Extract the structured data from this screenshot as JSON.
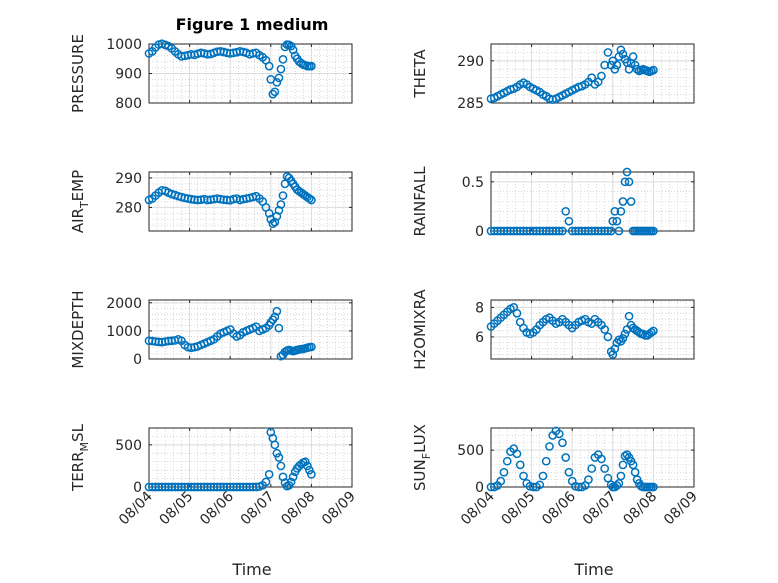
{
  "figure": {
    "title": "Figure 1 medium",
    "xlabel": "Time",
    "x_tick_labels": [
      "08/04",
      "08/05",
      "08/06",
      "08/07",
      "08/08",
      "08/09"
    ],
    "marker_color": "#0072BD",
    "marker": "open-circle"
  },
  "chart_data": [
    {
      "type": "scatter",
      "ylabel": "PRESSURE",
      "ylim": [
        800,
        1000
      ],
      "yticks": [
        800,
        900,
        1000
      ],
      "xlim": [
        "08/04",
        "08/09"
      ],
      "grid": true,
      "x": [
        0.0,
        0.08,
        0.16,
        0.24,
        0.32,
        0.4,
        0.48,
        0.56,
        0.64,
        0.72,
        0.8,
        0.88,
        0.96,
        1.04,
        1.12,
        1.2,
        1.28,
        1.36,
        1.44,
        1.52,
        1.6,
        1.68,
        1.76,
        1.84,
        1.92,
        2.0,
        2.08,
        2.16,
        2.24,
        2.32,
        2.4,
        2.48,
        2.56,
        2.64,
        2.72,
        2.8,
        2.88,
        2.96,
        3.0,
        3.05,
        3.1,
        3.15,
        3.2,
        3.25,
        3.3,
        3.35,
        3.4,
        3.45,
        3.5,
        3.55,
        3.6,
        3.65,
        3.7,
        3.75,
        3.8,
        3.85,
        3.9,
        3.95,
        4.0
      ],
      "y": [
        968,
        975,
        988,
        998,
        1001,
        997,
        993,
        985,
        975,
        965,
        958,
        960,
        962,
        965,
        963,
        967,
        970,
        968,
        965,
        966,
        970,
        974,
        975,
        973,
        970,
        968,
        970,
        972,
        975,
        973,
        970,
        965,
        968,
        970,
        962,
        955,
        945,
        925,
        880,
        830,
        838,
        870,
        885,
        915,
        948,
        990,
        998,
        997,
        993,
        980,
        960,
        950,
        940,
        935,
        930,
        928,
        925,
        925,
        925
      ]
    },
    {
      "type": "scatter",
      "ylabel": "THETA",
      "ylim": [
        285,
        292
      ],
      "yticks": [
        285,
        290
      ],
      "xlim": [
        "08/04",
        "08/09"
      ],
      "grid": true,
      "x": [
        0.0,
        0.08,
        0.16,
        0.24,
        0.32,
        0.4,
        0.48,
        0.56,
        0.64,
        0.72,
        0.8,
        0.88,
        0.96,
        1.04,
        1.12,
        1.2,
        1.28,
        1.36,
        1.44,
        1.52,
        1.6,
        1.68,
        1.76,
        1.84,
        1.92,
        2.0,
        2.08,
        2.16,
        2.24,
        2.32,
        2.4,
        2.48,
        2.56,
        2.64,
        2.72,
        2.8,
        2.88,
        2.96,
        3.0,
        3.05,
        3.1,
        3.15,
        3.2,
        3.25,
        3.3,
        3.35,
        3.4,
        3.45,
        3.5,
        3.55,
        3.6,
        3.65,
        3.7,
        3.75,
        3.8,
        3.85,
        3.9,
        3.95,
        4.0
      ],
      "y": [
        285.5,
        285.6,
        285.8,
        286.0,
        286.2,
        286.4,
        286.6,
        286.7,
        286.9,
        287.2,
        287.4,
        287.2,
        286.9,
        286.7,
        286.5,
        286.3,
        286.0,
        285.8,
        285.5,
        285.4,
        285.5,
        285.7,
        285.9,
        286.1,
        286.3,
        286.5,
        286.7,
        286.9,
        287.0,
        287.2,
        287.5,
        288.0,
        287.2,
        287.5,
        288.2,
        289.5,
        291.0,
        289.5,
        290.0,
        289.0,
        289.5,
        290.5,
        291.3,
        290.8,
        290.2,
        289.8,
        289.0,
        289.7,
        290.5,
        289.5,
        289.0,
        288.8,
        288.9,
        289.0,
        288.9,
        288.8,
        288.7,
        288.8,
        288.9
      ]
    },
    {
      "type": "scatter",
      "ylabel": "AIR_T_EMP",
      "ylim": [
        272,
        292
      ],
      "yticks": [
        280,
        290
      ],
      "xlim": [
        "08/04",
        "08/09"
      ],
      "grid": true,
      "x": [
        0.0,
        0.08,
        0.16,
        0.24,
        0.32,
        0.4,
        0.48,
        0.56,
        0.64,
        0.72,
        0.8,
        0.88,
        0.96,
        1.04,
        1.12,
        1.2,
        1.28,
        1.36,
        1.44,
        1.52,
        1.6,
        1.68,
        1.76,
        1.84,
        1.92,
        2.0,
        2.08,
        2.16,
        2.24,
        2.32,
        2.4,
        2.48,
        2.56,
        2.64,
        2.72,
        2.8,
        2.88,
        2.96,
        3.0,
        3.05,
        3.1,
        3.15,
        3.2,
        3.25,
        3.3,
        3.35,
        3.4,
        3.45,
        3.5,
        3.55,
        3.6,
        3.65,
        3.7,
        3.75,
        3.8,
        3.85,
        3.9,
        3.95,
        4.0
      ],
      "y": [
        282.5,
        283.0,
        284.0,
        285.0,
        285.8,
        285.6,
        285.0,
        284.5,
        284.2,
        283.8,
        283.5,
        283.2,
        283.0,
        282.8,
        282.6,
        282.5,
        282.6,
        282.8,
        282.5,
        282.6,
        282.8,
        283.0,
        282.8,
        282.6,
        282.5,
        282.4,
        282.8,
        283.0,
        282.5,
        282.8,
        283.0,
        283.2,
        283.5,
        283.8,
        283.0,
        282.0,
        280.0,
        278.0,
        276.0,
        274.5,
        275.0,
        277.0,
        279.0,
        281.0,
        284.0,
        288.0,
        290.5,
        290.0,
        289.0,
        288.0,
        287.0,
        286.0,
        285.5,
        285.0,
        284.5,
        284.0,
        283.5,
        283.0,
        282.5
      ]
    },
    {
      "type": "scatter",
      "ylabel": "RAINFALL",
      "ylim": [
        0,
        0.6
      ],
      "yticks": [
        0,
        0.5
      ],
      "xlim": [
        "08/04",
        "08/09"
      ],
      "grid": true,
      "x": [
        0.0,
        0.08,
        0.16,
        0.24,
        0.32,
        0.4,
        0.48,
        0.56,
        0.64,
        0.72,
        0.8,
        0.88,
        0.96,
        1.04,
        1.12,
        1.2,
        1.28,
        1.36,
        1.44,
        1.52,
        1.6,
        1.68,
        1.76,
        1.84,
        1.92,
        2.0,
        2.08,
        2.16,
        2.24,
        2.32,
        2.4,
        2.48,
        2.56,
        2.64,
        2.72,
        2.8,
        2.88,
        2.96,
        3.0,
        3.05,
        3.1,
        3.15,
        3.2,
        3.25,
        3.3,
        3.35,
        3.4,
        3.45,
        3.5,
        3.55,
        3.6,
        3.65,
        3.7,
        3.75,
        3.8,
        3.85,
        3.9,
        3.95,
        4.0
      ],
      "y": [
        0,
        0,
        0,
        0,
        0,
        0,
        0,
        0,
        0,
        0,
        0,
        0,
        0,
        0,
        0,
        0,
        0,
        0,
        0,
        0,
        0,
        0,
        0,
        0.2,
        0.1,
        0,
        0,
        0,
        0,
        0,
        0,
        0,
        0,
        0,
        0,
        0,
        0,
        0,
        0.1,
        0.2,
        0.1,
        0,
        0.2,
        0.3,
        0.5,
        0.6,
        0.5,
        0.3,
        0,
        0,
        0,
        0,
        0,
        0,
        0,
        0,
        0,
        0,
        0
      ]
    },
    {
      "type": "scatter",
      "ylabel": "MIXDEPTH",
      "ylim": [
        0,
        2100
      ],
      "yticks": [
        0,
        1000,
        2000
      ],
      "xlim": [
        "08/04",
        "08/09"
      ],
      "grid": true,
      "x": [
        0.0,
        0.08,
        0.16,
        0.24,
        0.32,
        0.4,
        0.48,
        0.56,
        0.64,
        0.72,
        0.8,
        0.88,
        0.96,
        1.04,
        1.12,
        1.2,
        1.28,
        1.36,
        1.44,
        1.52,
        1.6,
        1.68,
        1.76,
        1.84,
        1.92,
        2.0,
        2.08,
        2.16,
        2.24,
        2.32,
        2.4,
        2.48,
        2.56,
        2.64,
        2.72,
        2.8,
        2.88,
        2.96,
        3.0,
        3.05,
        3.1,
        3.15,
        3.2,
        3.25,
        3.3,
        3.35,
        3.4,
        3.45,
        3.5,
        3.55,
        3.6,
        3.65,
        3.7,
        3.75,
        3.8,
        3.85,
        3.9,
        3.95,
        4.0
      ],
      "y": [
        650,
        640,
        620,
        610,
        600,
        620,
        640,
        650,
        660,
        700,
        650,
        500,
        420,
        400,
        420,
        450,
        500,
        550,
        600,
        650,
        700,
        800,
        900,
        950,
        1000,
        1050,
        900,
        800,
        850,
        950,
        1000,
        1050,
        1100,
        1150,
        1000,
        1050,
        1100,
        1200,
        1300,
        1400,
        1500,
        1700,
        1100,
        100,
        150,
        250,
        300,
        320,
        300,
        280,
        300,
        320,
        340,
        350,
        360,
        380,
        400,
        420,
        430
      ]
    },
    {
      "type": "scatter",
      "ylabel": "H2OMIXRA",
      "ylim": [
        4.5,
        8.5
      ],
      "yticks": [
        6,
        8
      ],
      "xlim": [
        "08/04",
        "08/09"
      ],
      "grid": true,
      "x": [
        0.0,
        0.08,
        0.16,
        0.24,
        0.32,
        0.4,
        0.48,
        0.56,
        0.64,
        0.72,
        0.8,
        0.88,
        0.96,
        1.04,
        1.12,
        1.2,
        1.28,
        1.36,
        1.44,
        1.52,
        1.6,
        1.68,
        1.76,
        1.84,
        1.92,
        2.0,
        2.08,
        2.16,
        2.24,
        2.32,
        2.4,
        2.48,
        2.56,
        2.64,
        2.72,
        2.8,
        2.88,
        2.96,
        3.0,
        3.05,
        3.1,
        3.15,
        3.2,
        3.25,
        3.3,
        3.35,
        3.4,
        3.45,
        3.5,
        3.55,
        3.6,
        3.65,
        3.7,
        3.75,
        3.8,
        3.85,
        3.9,
        3.95,
        4.0
      ],
      "y": [
        6.7,
        6.9,
        7.1,
        7.3,
        7.5,
        7.7,
        7.9,
        8.0,
        7.6,
        7.0,
        6.6,
        6.3,
        6.2,
        6.3,
        6.5,
        6.8,
        7.0,
        7.2,
        7.3,
        7.1,
        6.9,
        7.0,
        7.2,
        7.0,
        6.8,
        6.6,
        6.8,
        7.0,
        7.1,
        7.2,
        7.0,
        6.9,
        7.2,
        7.0,
        6.8,
        6.5,
        6.0,
        5.0,
        4.8,
        5.2,
        5.6,
        5.8,
        5.7,
        5.9,
        6.2,
        6.5,
        7.4,
        6.8,
        6.6,
        6.5,
        6.4,
        6.3,
        6.2,
        6.2,
        6.1,
        6.1,
        6.2,
        6.3,
        6.4
      ]
    },
    {
      "type": "scatter",
      "ylabel": "TERR_M_SL",
      "ylim": [
        0,
        700
      ],
      "yticks": [
        0,
        500
      ],
      "xlim": [
        "08/04",
        "08/09"
      ],
      "grid": true,
      "x": [
        0.0,
        0.08,
        0.16,
        0.24,
        0.32,
        0.4,
        0.48,
        0.56,
        0.64,
        0.72,
        0.8,
        0.88,
        0.96,
        1.04,
        1.12,
        1.2,
        1.28,
        1.36,
        1.44,
        1.52,
        1.6,
        1.68,
        1.76,
        1.84,
        1.92,
        2.0,
        2.08,
        2.16,
        2.24,
        2.32,
        2.4,
        2.48,
        2.56,
        2.64,
        2.72,
        2.8,
        2.88,
        2.96,
        3.0,
        3.05,
        3.1,
        3.15,
        3.2,
        3.25,
        3.3,
        3.35,
        3.4,
        3.45,
        3.5,
        3.55,
        3.6,
        3.65,
        3.7,
        3.75,
        3.8,
        3.85,
        3.9,
        3.95,
        4.0
      ],
      "y": [
        0,
        0,
        0,
        0,
        0,
        0,
        0,
        0,
        0,
        0,
        0,
        0,
        0,
        0,
        0,
        0,
        0,
        0,
        0,
        0,
        0,
        0,
        0,
        0,
        0,
        0,
        0,
        0,
        0,
        0,
        0,
        0,
        0,
        0,
        5,
        20,
        60,
        150,
        650,
        580,
        500,
        400,
        350,
        250,
        120,
        50,
        10,
        20,
        60,
        120,
        180,
        220,
        250,
        270,
        290,
        300,
        250,
        200,
        150
      ]
    },
    {
      "type": "scatter",
      "ylabel": "SUN_F_LUX",
      "ylim": [
        0,
        800
      ],
      "yticks": [
        0,
        500
      ],
      "xlim": [
        "08/04",
        "08/09"
      ],
      "grid": true,
      "x": [
        0.0,
        0.08,
        0.16,
        0.24,
        0.32,
        0.4,
        0.48,
        0.56,
        0.64,
        0.72,
        0.8,
        0.88,
        0.96,
        1.04,
        1.12,
        1.2,
        1.28,
        1.36,
        1.44,
        1.52,
        1.6,
        1.68,
        1.76,
        1.84,
        1.92,
        2.0,
        2.08,
        2.16,
        2.24,
        2.32,
        2.4,
        2.48,
        2.56,
        2.64,
        2.72,
        2.8,
        2.88,
        2.96,
        3.0,
        3.05,
        3.1,
        3.15,
        3.2,
        3.25,
        3.3,
        3.35,
        3.4,
        3.45,
        3.5,
        3.55,
        3.6,
        3.65,
        3.7,
        3.75,
        3.8,
        3.85,
        3.9,
        3.95,
        4.0
      ],
      "y": [
        0,
        0,
        20,
        80,
        200,
        350,
        480,
        520,
        450,
        300,
        150,
        50,
        10,
        0,
        0,
        30,
        150,
        350,
        550,
        700,
        760,
        720,
        600,
        400,
        200,
        80,
        10,
        0,
        0,
        20,
        100,
        250,
        400,
        440,
        380,
        250,
        120,
        30,
        0,
        0,
        20,
        50,
        150,
        300,
        420,
        440,
        400,
        350,
        300,
        200,
        100,
        50,
        10,
        0,
        0,
        0,
        0,
        0,
        0
      ]
    }
  ]
}
